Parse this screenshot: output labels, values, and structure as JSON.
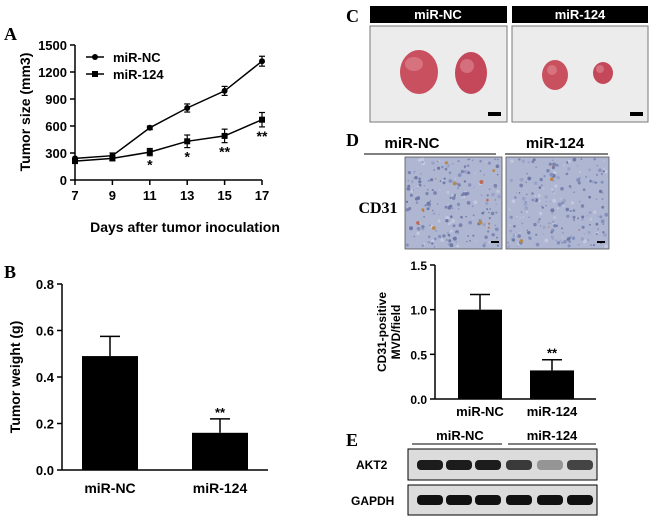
{
  "panels": {
    "A": {
      "letter": "A",
      "chart_data": {
        "type": "line",
        "xlabel": "Days after tumor inoculation",
        "ylabel": "Tumor size (mm3)",
        "x": [
          7,
          9,
          11,
          13,
          15,
          17
        ],
        "xlim": [
          7,
          17
        ],
        "ylim": [
          0,
          1500
        ],
        "xticks": [
          "7",
          "9",
          "11",
          "13",
          "15",
          "17"
        ],
        "yticks": [
          "0",
          "300",
          "600",
          "900",
          "1200",
          "1500"
        ],
        "legend_position": "top-left",
        "series": [
          {
            "name": "miR-NC",
            "marker": "circle",
            "values": [
              240,
              270,
              580,
              800,
              990,
              1320
            ],
            "errors": [
              0,
              30,
              20,
              45,
              50,
              55
            ]
          },
          {
            "name": "miR-124",
            "marker": "square",
            "values": [
              210,
              240,
              310,
              430,
              490,
              670
            ],
            "errors": [
              0,
              25,
              40,
              70,
              75,
              80
            ]
          }
        ],
        "annotations": [
          {
            "x": 11,
            "text": "*"
          },
          {
            "x": 13,
            "text": "*"
          },
          {
            "x": 15,
            "text": "**"
          },
          {
            "x": 17,
            "text": "**"
          }
        ]
      }
    },
    "B": {
      "letter": "B",
      "chart_data": {
        "type": "bar",
        "ylabel": "Tumor weight (g)",
        "categories": [
          "miR-NC",
          "miR-124"
        ],
        "values": [
          0.49,
          0.16
        ],
        "errors": [
          0.085,
          0.06
        ],
        "ylim": [
          0,
          0.8
        ],
        "yticks": [
          "0.0",
          "0.2",
          "0.4",
          "0.6",
          "0.8"
        ],
        "annotations": [
          {
            "category": "miR-124",
            "text": "**"
          }
        ]
      }
    },
    "C": {
      "letter": "C",
      "labels": [
        "miR-NC",
        "miR-124"
      ]
    },
    "D": {
      "letter": "D",
      "row_label": "CD31",
      "labels": [
        "miR-NC",
        "miR-124"
      ],
      "chart_data": {
        "type": "bar",
        "ylabel_lines": [
          "CD31-positive",
          "MVD/field"
        ],
        "categories": [
          "miR-NC",
          "miR-124"
        ],
        "values": [
          1.0,
          0.32
        ],
        "errors": [
          0.17,
          0.12
        ],
        "ylim": [
          0,
          1.5
        ],
        "yticks": [
          "0.0",
          "0.5",
          "1.0",
          "1.5"
        ],
        "annotations": [
          {
            "category": "miR-124",
            "text": "**"
          }
        ]
      }
    },
    "E": {
      "letter": "E",
      "group_labels": [
        "miR-NC",
        "miR-124"
      ],
      "row_labels": [
        "AKT2",
        "GAPDH"
      ],
      "band_intensity": {
        "AKT2": [
          0.95,
          0.95,
          0.95,
          0.8,
          0.35,
          0.75
        ],
        "GAPDH": [
          1,
          1,
          1,
          1,
          1,
          1
        ]
      }
    }
  },
  "colors": {
    "line": "#000000",
    "bar": "#000000",
    "tumor": "#c9505e",
    "tissue_bg": "#aeb6d2",
    "blot_bg": "#dcdcdc",
    "band": "#111111"
  }
}
